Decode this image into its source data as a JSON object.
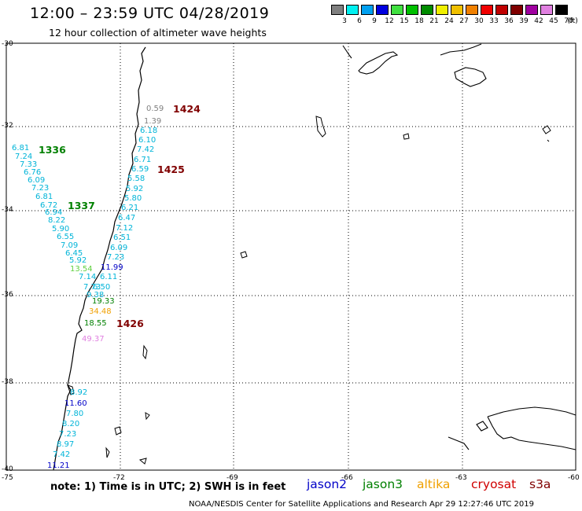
{
  "header": {
    "title": "12:00 – 23:59 UTC 04/28/2019",
    "subtitle": "12 hour collection of altimeter wave heights"
  },
  "scale": {
    "unit": "(ft)",
    "swatches": [
      {
        "label": "3",
        "color": "#7f7f7f"
      },
      {
        "label": "6",
        "color": "#00f0f0"
      },
      {
        "label": "9",
        "color": "#00a0f0"
      },
      {
        "label": "12",
        "color": "#0000e0"
      },
      {
        "label": "15",
        "color": "#40e040"
      },
      {
        "label": "18",
        "color": "#00c000"
      },
      {
        "label": "21",
        "color": "#008c00"
      },
      {
        "label": "24",
        "color": "#f0f000"
      },
      {
        "label": "27",
        "color": "#f0c000"
      },
      {
        "label": "30",
        "color": "#f08000"
      },
      {
        "label": "33",
        "color": "#f00000"
      },
      {
        "label": "36",
        "color": "#c00000"
      },
      {
        "label": "39",
        "color": "#800000"
      },
      {
        "label": "42",
        "color": "#a000a0"
      },
      {
        "label": "45",
        "color": "#e080e0"
      },
      {
        "label": "70",
        "color": "#000000"
      }
    ]
  },
  "axes": {
    "lat_labels": [
      "-30",
      "-32",
      "-34",
      "-36",
      "-38",
      "-40"
    ],
    "lon_labels": [
      "-75",
      "-72",
      "-69",
      "-66",
      "-63",
      "-60"
    ]
  },
  "colors": {
    "jason2": "#0000c8",
    "jason3": "#008000",
    "altika": "#f0a000",
    "cryosat": "#d00000",
    "s3a": "#800000",
    "gray": "#808080",
    "cyan": "#00b4d8",
    "ltgreen": "#60d040",
    "pink": "#e080e0"
  },
  "passes": [
    {
      "label": "1424",
      "color": "#800000"
    },
    {
      "label": "1425",
      "color": "#800000"
    },
    {
      "label": "1336",
      "color": "#008000"
    },
    {
      "label": "1337",
      "color": "#008000"
    },
    {
      "label": "1426",
      "color": "#800000"
    }
  ],
  "track_a": [
    "0.59",
    "1.39",
    "6.18",
    "6.10",
    "7.42",
    "6.71",
    "6.59",
    "5.58",
    "5.92",
    "5.80",
    "6.21",
    "6.47",
    "7.12",
    "6.51",
    "6.09",
    "7.23",
    "11.99",
    "6.11",
    "6.50"
  ],
  "track_b": [
    "6.81",
    "7.24",
    "7.33",
    "6.76",
    "6.09",
    "7.23",
    "6.81",
    "6.72",
    "6.94",
    "8.22",
    "5.90",
    "6.55",
    "7.09",
    "6.45",
    "5.92",
    "13.54",
    "7.14",
    "7.73",
    "9.38",
    "19.33",
    "34.48",
    "18.55",
    "49.37"
  ],
  "track_c": [
    "8.92",
    "11.60",
    "7.80",
    "8.20",
    "7.23",
    "8.97",
    "7.42",
    "11.21"
  ],
  "footer": {
    "note": "note:  1) Time is in UTC;  2) SWH is in feet",
    "missions": [
      "jason2",
      "jason3",
      "altika",
      "cryosat",
      "s3a"
    ],
    "credit": "NOAA/NESDIS Center for Satellite Applications and Research     Apr 29 12:27:46 UTC 2019"
  }
}
